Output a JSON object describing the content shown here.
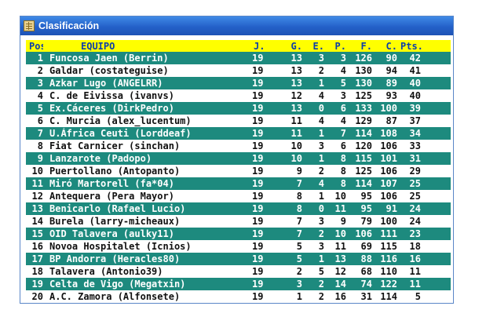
{
  "window": {
    "title": "Clasificación",
    "icon": "table-app-icon"
  },
  "table": {
    "headers": [
      "Pos",
      "EQUIPO",
      "J.",
      "G.",
      "E.",
      "P.",
      "F.",
      "C.",
      "Pts."
    ],
    "rows": [
      [
        "1",
        "Funcosa Jaen (Berrin)",
        "19",
        "13",
        "3",
        "3",
        "126",
        "90",
        "42"
      ],
      [
        "2",
        "Galdar (costateguise)",
        "19",
        "13",
        "2",
        "4",
        "130",
        "94",
        "41"
      ],
      [
        "3",
        "Azkar Lugo (ANGELRR)",
        "19",
        "13",
        "1",
        "5",
        "130",
        "89",
        "40"
      ],
      [
        "4",
        "C. de Eivissa (ivanvs)",
        "19",
        "12",
        "4",
        "3",
        "125",
        "93",
        "40"
      ],
      [
        "5",
        "Ex.Cáceres (DirkPedro)",
        "19",
        "13",
        "0",
        "6",
        "133",
        "100",
        "39"
      ],
      [
        "6",
        "C. Murcia (alex_lucentum)",
        "19",
        "11",
        "4",
        "4",
        "129",
        "87",
        "37"
      ],
      [
        "7",
        "U.África Ceuti (Lorddeaf)",
        "19",
        "11",
        "1",
        "7",
        "114",
        "108",
        "34"
      ],
      [
        "8",
        "Fiat Carnicer (sinchan)",
        "19",
        "10",
        "3",
        "6",
        "120",
        "106",
        "33"
      ],
      [
        "9",
        "Lanzarote (Padopo)",
        "19",
        "10",
        "1",
        "8",
        "115",
        "101",
        "31"
      ],
      [
        "10",
        "Puertollano (Antopanto)",
        "19",
        "9",
        "2",
        "8",
        "125",
        "106",
        "29"
      ],
      [
        "11",
        "Miró Martorell (fa*04)",
        "19",
        "7",
        "4",
        "8",
        "114",
        "107",
        "25"
      ],
      [
        "12",
        "Antequera (Pera Mayor)",
        "19",
        "8",
        "1",
        "10",
        "95",
        "106",
        "25"
      ],
      [
        "13",
        "Benicarlo (Rafael Lucio)",
        "19",
        "8",
        "0",
        "11",
        "95",
        "91",
        "24"
      ],
      [
        "14",
        "Burela (larry-micheaux)",
        "19",
        "7",
        "3",
        "9",
        "79",
        "100",
        "24"
      ],
      [
        "15",
        "OID Talavera (aulky11)",
        "19",
        "7",
        "2",
        "10",
        "106",
        "111",
        "23"
      ],
      [
        "16",
        "Novoa Hospitalet (Icnios)",
        "19",
        "5",
        "3",
        "11",
        "69",
        "115",
        "18"
      ],
      [
        "17",
        "BP Andorra (Heracles80)",
        "19",
        "5",
        "1",
        "13",
        "88",
        "116",
        "16"
      ],
      [
        "18",
        "Talavera (Antonio39)",
        "19",
        "2",
        "5",
        "12",
        "68",
        "110",
        "11"
      ],
      [
        "19",
        "Celta de Vigo (Megatxin)",
        "19",
        "3",
        "2",
        "14",
        "74",
        "122",
        "11"
      ],
      [
        "20",
        "A.C. Zamora (Alfonsete)",
        "19",
        "1",
        "2",
        "16",
        "31",
        "114",
        "5"
      ]
    ]
  },
  "colors": {
    "header_bg": "#ffff00",
    "header_text": "#0d3fa8",
    "odd_row": "#1d8a7e",
    "title_bar": "#2461c9"
  }
}
